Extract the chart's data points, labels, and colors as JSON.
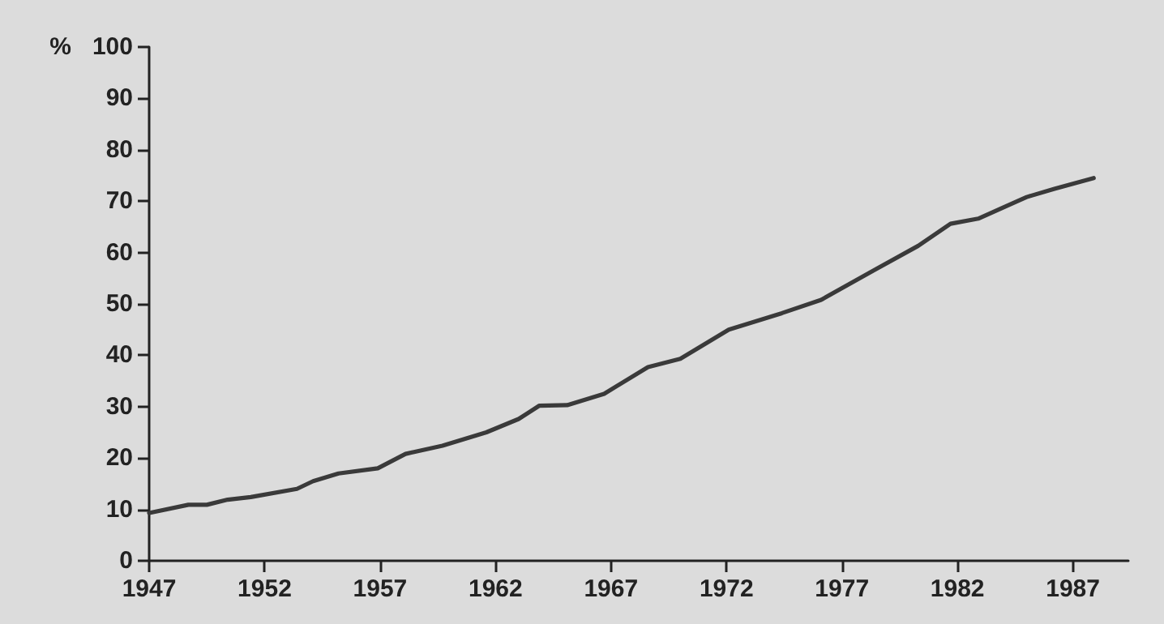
{
  "chart_data": {
    "type": "line",
    "ylabel": "%",
    "x": [
      1947,
      1948.7,
      1949.5,
      1950.4,
      1951.4,
      1953.4,
      1954.1,
      1955.2,
      1956.9,
      1958.1,
      1959.7,
      1961.6,
      1963,
      1963.9,
      1965.1,
      1966.7,
      1968.6,
      1970,
      1972.1,
      1974.4,
      1976.1,
      1978.4,
      1980.3,
      1981.7,
      1982.9,
      1985,
      1986.2,
      1987.9
    ],
    "series": [
      {
        "color": "#3a3a3a",
        "values": [
          9.3,
          10.9,
          10.9,
          11.9,
          12.4,
          14,
          15.5,
          17,
          18,
          20.8,
          22.4,
          25,
          27.6,
          30.2,
          30.3,
          32.5,
          37.7,
          39.3,
          45,
          48.2,
          50.8,
          56.6,
          61.3,
          65.6,
          66.6,
          70.8,
          72.4,
          74.5
        ]
      }
    ],
    "xlim": [
      1947,
      1989.4
    ],
    "xticks": [
      1947,
      1952,
      1957,
      1962,
      1967,
      1972,
      1977,
      1982,
      1987
    ],
    "ylim": [
      0,
      100
    ],
    "yticks": [
      0,
      10,
      20,
      30,
      40,
      50,
      60,
      70,
      80,
      90,
      100
    ],
    "grid": false,
    "marker": "none",
    "line_style": "solid"
  }
}
